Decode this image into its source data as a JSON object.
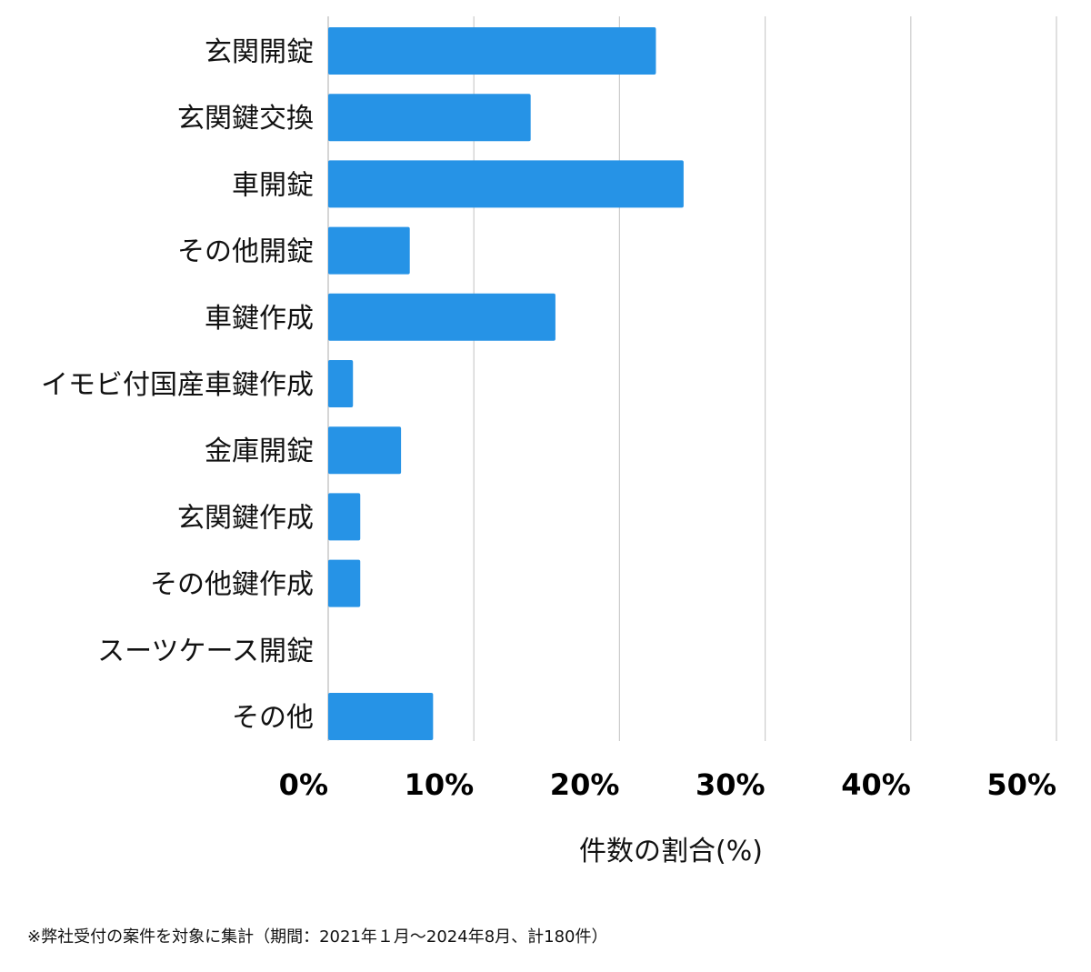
{
  "chart_data": {
    "type": "bar",
    "orientation": "horizontal",
    "categories": [
      "玄関開錠",
      "玄関鍵交換",
      "車開錠",
      "その他開錠",
      "車鍵作成",
      "イモビ付国産車鍵作成",
      "金庫開錠",
      "玄関鍵作成",
      "その他鍵作成",
      "スーツケース開錠",
      "その他"
    ],
    "values": [
      22.5,
      13.9,
      24.4,
      5.6,
      15.6,
      1.7,
      5.0,
      2.2,
      2.2,
      0,
      7.2
    ],
    "xlabel": "件数の割合(%)",
    "ylabel": "",
    "xlim": [
      0,
      50
    ],
    "ticks": [
      0,
      10,
      20,
      30,
      40,
      50
    ],
    "tick_labels": [
      "0%",
      "10%",
      "20%",
      "30%",
      "40%",
      "50%"
    ],
    "grid": true,
    "bar_color": "#2693e6",
    "grid_color": "#cccccc"
  },
  "footnote": "※弊社受付の案件を対象に集計（期間：2021年１月〜2024年8月、計180件）"
}
